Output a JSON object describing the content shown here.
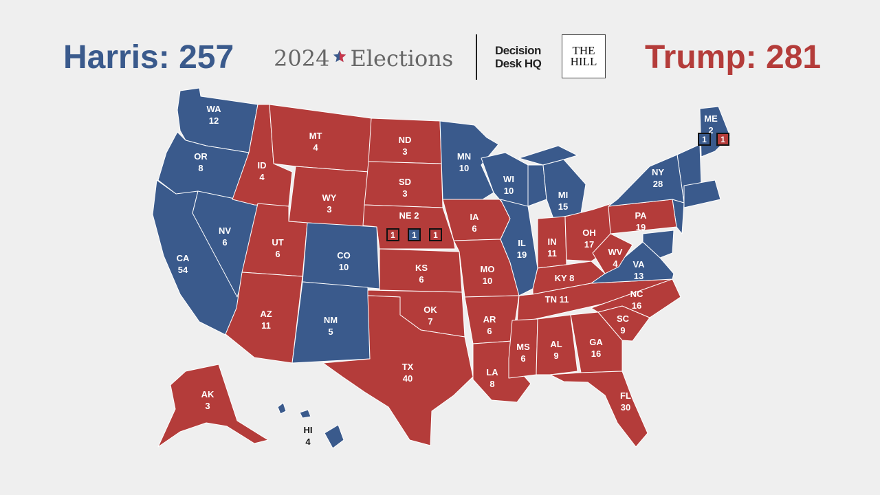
{
  "header": {
    "harris_label": "Harris: 257",
    "title_year": "2024",
    "title_word": "Elections",
    "ddhq_line1": "Decision",
    "ddhq_line2": "Desk HQ",
    "hill_line1": "THE",
    "hill_line2": "HILL",
    "trump_label": "Trump: 281"
  },
  "colors": {
    "dem": "#3a5a8c",
    "rep": "#b43c3a",
    "background": "#efefef"
  },
  "states": [
    {
      "abbr": "WA",
      "votes": "12",
      "party": "dem"
    },
    {
      "abbr": "OR",
      "votes": "8",
      "party": "dem"
    },
    {
      "abbr": "CA",
      "votes": "54",
      "party": "dem"
    },
    {
      "abbr": "NV",
      "votes": "6",
      "party": "dem"
    },
    {
      "abbr": "ID",
      "votes": "4",
      "party": "rep"
    },
    {
      "abbr": "MT",
      "votes": "4",
      "party": "rep"
    },
    {
      "abbr": "WY",
      "votes": "3",
      "party": "rep"
    },
    {
      "abbr": "UT",
      "votes": "6",
      "party": "rep"
    },
    {
      "abbr": "CO",
      "votes": "10",
      "party": "dem"
    },
    {
      "abbr": "AZ",
      "votes": "11",
      "party": "rep"
    },
    {
      "abbr": "NM",
      "votes": "5",
      "party": "dem"
    },
    {
      "abbr": "ND",
      "votes": "3",
      "party": "rep"
    },
    {
      "abbr": "SD",
      "votes": "3",
      "party": "rep"
    },
    {
      "abbr": "NE",
      "votes": "2",
      "party": "rep"
    },
    {
      "abbr": "KS",
      "votes": "6",
      "party": "rep"
    },
    {
      "abbr": "OK",
      "votes": "7",
      "party": "rep"
    },
    {
      "abbr": "TX",
      "votes": "40",
      "party": "rep"
    },
    {
      "abbr": "MN",
      "votes": "10",
      "party": "dem"
    },
    {
      "abbr": "IA",
      "votes": "6",
      "party": "rep"
    },
    {
      "abbr": "MO",
      "votes": "10",
      "party": "rep"
    },
    {
      "abbr": "AR",
      "votes": "6",
      "party": "rep"
    },
    {
      "abbr": "LA",
      "votes": "8",
      "party": "rep"
    },
    {
      "abbr": "WI",
      "votes": "10",
      "party": "dem"
    },
    {
      "abbr": "IL",
      "votes": "19",
      "party": "dem"
    },
    {
      "abbr": "MI",
      "votes": "15",
      "party": "dem"
    },
    {
      "abbr": "IN",
      "votes": "11",
      "party": "rep"
    },
    {
      "abbr": "OH",
      "votes": "17",
      "party": "rep"
    },
    {
      "abbr": "KY",
      "votes": "8",
      "party": "rep"
    },
    {
      "abbr": "TN",
      "votes": "11",
      "party": "rep"
    },
    {
      "abbr": "MS",
      "votes": "6",
      "party": "rep"
    },
    {
      "abbr": "AL",
      "votes": "9",
      "party": "rep"
    },
    {
      "abbr": "GA",
      "votes": "16",
      "party": "rep"
    },
    {
      "abbr": "FL",
      "votes": "30",
      "party": "rep"
    },
    {
      "abbr": "SC",
      "votes": "9",
      "party": "rep"
    },
    {
      "abbr": "NC",
      "votes": "16",
      "party": "rep"
    },
    {
      "abbr": "VA",
      "votes": "13",
      "party": "dem"
    },
    {
      "abbr": "WV",
      "votes": "4",
      "party": "rep"
    },
    {
      "abbr": "PA",
      "votes": "19",
      "party": "rep"
    },
    {
      "abbr": "NY",
      "votes": "28",
      "party": "dem"
    },
    {
      "abbr": "ME",
      "votes": "2",
      "party": "dem"
    },
    {
      "abbr": "AK",
      "votes": "3",
      "party": "rep"
    },
    {
      "abbr": "HI",
      "votes": "4",
      "party": "dem"
    }
  ],
  "district_boxes": {
    "ne": [
      {
        "value": "1",
        "party": "rep"
      },
      {
        "value": "1",
        "party": "dem"
      },
      {
        "value": "1",
        "party": "rep"
      }
    ],
    "me": [
      {
        "value": "1",
        "party": "dem"
      },
      {
        "value": "1",
        "party": "rep"
      }
    ]
  }
}
